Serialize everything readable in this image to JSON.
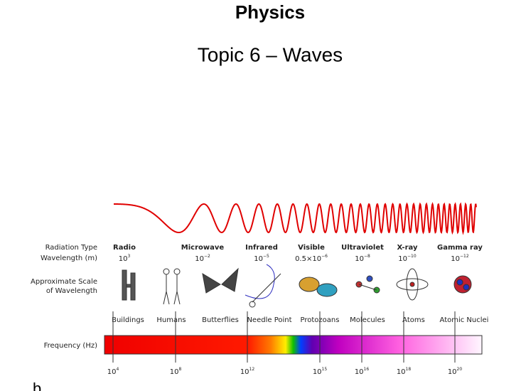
{
  "header": {
    "title": "Physics",
    "subtitle": "Topic 6 – Waves"
  },
  "diagram": {
    "row_labels": {
      "radiation_type": "Radiation Type",
      "wavelength": "Wavelength (m)",
      "scale_line1": "Approximate Scale",
      "scale_line2": "of Wavelength",
      "frequency": "Frequency (Hz)"
    },
    "radiation": [
      {
        "name": "Radio",
        "base": "10",
        "exponent": "3"
      },
      {
        "name": "Microwave",
        "base": "10",
        "exponent": "−2"
      },
      {
        "name": "Infrared",
        "base": "10",
        "exponent": "−5"
      },
      {
        "name": "Visible",
        "base": "0.5×10",
        "exponent": "−6"
      },
      {
        "name": "Ultraviolet",
        "base": "10",
        "exponent": "−8"
      },
      {
        "name": "X-ray",
        "base": "10",
        "exponent": "−10"
      },
      {
        "name": "Gamma ray",
        "base": "10",
        "exponent": "−12"
      }
    ],
    "scale_objects": [
      "Buildings",
      "Humans",
      "Butterflies",
      "Needle Point",
      "Protozoans",
      "Molecules",
      "Atoms",
      "Atomic Nuclei"
    ],
    "frequencies": [
      {
        "base": "10",
        "exponent": "4"
      },
      {
        "base": "10",
        "exponent": "8"
      },
      {
        "base": "10",
        "exponent": "12"
      },
      {
        "base": "10",
        "exponent": "15"
      },
      {
        "base": "10",
        "exponent": "16"
      },
      {
        "base": "10",
        "exponent": "18"
      },
      {
        "base": "10",
        "exponent": "20"
      }
    ]
  },
  "footer": {
    "marker": "b"
  }
}
